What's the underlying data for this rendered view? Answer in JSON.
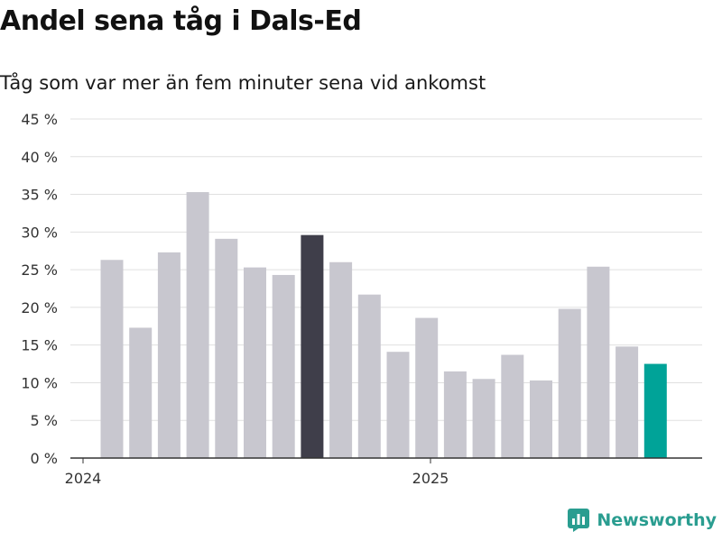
{
  "title": "Andel sena tåg i Dals-Ed",
  "subtitle": "Tåg som var mer än fem minuter sena vid ankomst",
  "brand": {
    "name": "Newsworthy"
  },
  "colors": {
    "bar": "#c8c7cf",
    "highlight_dark": "#3f3e4a",
    "highlight_accent": "#00a398",
    "grid": "#e0e0e0",
    "axis": "#333333",
    "brand": "#2a9d90"
  },
  "chart_data": {
    "type": "bar",
    "ylim": [
      0,
      45
    ],
    "yticks": [
      "0 %",
      "5 %",
      "10 %",
      "15 %",
      "20 %",
      "25 %",
      "30 %",
      "35 %",
      "40 %",
      "45 %"
    ],
    "xtick_labels": [
      "2024",
      "2025"
    ],
    "values": [
      26.3,
      17.3,
      27.3,
      35.3,
      29.1,
      25.3,
      24.3,
      29.6,
      26.0,
      21.7,
      14.1,
      18.6,
      11.5,
      10.5,
      13.7,
      10.3,
      19.8,
      25.4,
      14.8,
      12.5
    ],
    "highlight": {
      "7": "dark",
      "19": "accent"
    },
    "grid": true
  }
}
